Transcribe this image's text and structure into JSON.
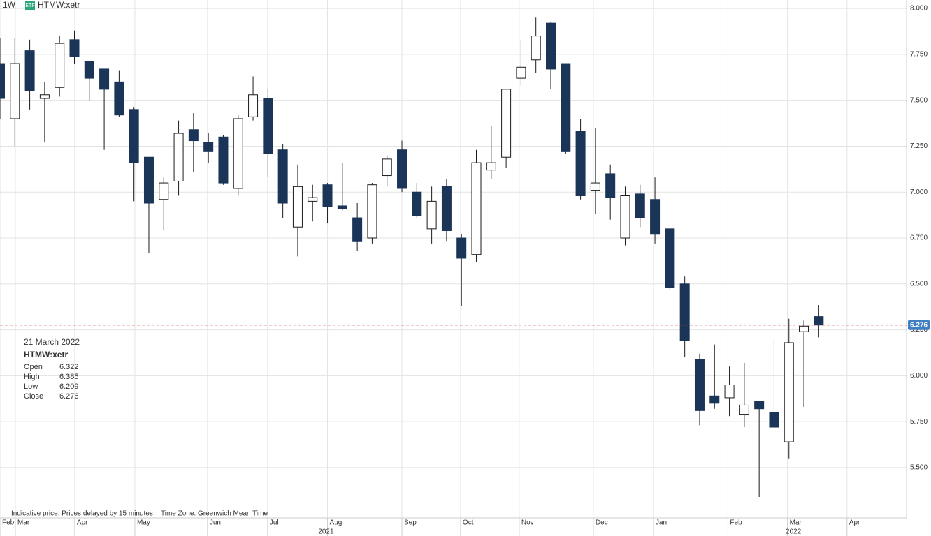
{
  "header": {
    "interval": "1W",
    "badge": "ETF",
    "symbol": "HTMW:xetr"
  },
  "info": {
    "date": "21 March 2022",
    "symbol": "HTMW:xetr",
    "rows": [
      {
        "label": "Open",
        "value": 6.322
      },
      {
        "label": "High",
        "value": 6.385
      },
      {
        "label": "Low",
        "value": 6.209
      },
      {
        "label": "Close",
        "value": 6.276
      }
    ]
  },
  "footer": {
    "note": "Indicative price. Prices delayed by 15 minutes",
    "timezone": "Time Zone: Greenwich Mean Time"
  },
  "chart_data": {
    "type": "candlestick",
    "x": [
      0,
      1,
      2,
      3,
      4,
      5,
      6,
      7,
      8,
      9,
      10,
      11,
      12,
      13,
      14,
      15,
      16,
      17,
      18,
      19,
      20,
      21,
      22,
      23,
      24,
      25,
      26,
      27,
      28,
      29,
      30,
      31,
      32,
      33,
      34,
      35,
      36,
      37,
      38,
      39,
      40,
      41,
      42,
      43,
      44,
      45,
      46,
      47,
      48,
      49,
      50,
      51,
      52,
      53,
      54,
      55
    ],
    "open": [
      7.7,
      7.4,
      7.77,
      7.51,
      7.57,
      7.83,
      7.71,
      7.67,
      7.6,
      7.45,
      7.19,
      6.96,
      7.06,
      7.34,
      7.27,
      7.3,
      7.02,
      7.41,
      7.51,
      7.23,
      6.81,
      6.95,
      7.04,
      6.925,
      6.86,
      6.75,
      7.09,
      7.23,
      7.0,
      6.8,
      7.03,
      6.75,
      6.66,
      7.12,
      7.19,
      7.62,
      7.72,
      7.92,
      7.7,
      7.33,
      7.01,
      7.1,
      6.75,
      6.99,
      6.96,
      6.8,
      6.5,
      6.09,
      5.89,
      5.88,
      5.79,
      5.86,
      5.8,
      5.64,
      6.24,
      6.322
    ],
    "high": [
      7.84,
      7.84,
      7.83,
      7.6,
      7.85,
      7.88,
      7.71,
      7.67,
      7.66,
      7.46,
      7.19,
      7.08,
      7.39,
      7.43,
      7.32,
      7.31,
      7.42,
      7.63,
      7.56,
      7.26,
      7.15,
      7.04,
      7.05,
      7.16,
      6.94,
      7.05,
      7.2,
      7.28,
      7.05,
      7.03,
      7.07,
      6.77,
      7.23,
      7.36,
      7.56,
      7.83,
      7.95,
      7.925,
      7.7,
      7.4,
      7.35,
      7.15,
      7.03,
      7.04,
      7.08,
      6.8,
      6.54,
      6.12,
      6.17,
      6.05,
      6.07,
      5.86,
      6.2,
      6.31,
      6.3,
      6.385
    ],
    "low": [
      7.4,
      7.25,
      7.45,
      7.27,
      7.52,
      7.7,
      7.5,
      7.23,
      7.41,
      6.95,
      6.67,
      6.79,
      6.98,
      7.11,
      7.16,
      7.04,
      6.98,
      7.39,
      7.08,
      6.86,
      6.65,
      6.84,
      6.83,
      6.9,
      6.68,
      6.72,
      7.03,
      7.0,
      6.86,
      6.72,
      6.73,
      6.38,
      6.62,
      7.07,
      7.13,
      7.58,
      7.65,
      7.56,
      7.21,
      6.96,
      6.88,
      6.85,
      6.71,
      6.81,
      6.72,
      6.47,
      6.1,
      5.73,
      5.82,
      5.78,
      5.72,
      5.34,
      5.72,
      5.55,
      5.83,
      6.209
    ],
    "close": [
      7.51,
      7.7,
      7.55,
      7.53,
      7.81,
      7.74,
      7.62,
      7.56,
      7.42,
      7.16,
      6.94,
      7.05,
      7.32,
      7.28,
      7.22,
      7.05,
      7.4,
      7.53,
      7.21,
      6.94,
      7.03,
      6.97,
      6.92,
      6.91,
      6.73,
      7.04,
      7.18,
      7.02,
      6.87,
      6.95,
      6.79,
      6.64,
      7.16,
      7.16,
      7.56,
      7.68,
      7.85,
      7.67,
      7.22,
      6.98,
      7.05,
      6.97,
      6.98,
      6.86,
      6.77,
      6.48,
      6.19,
      5.81,
      5.85,
      5.95,
      5.84,
      5.82,
      5.72,
      6.18,
      6.27,
      6.276
    ],
    "up_color": "#ffffff",
    "down_color": "#1b3558",
    "xlim": [
      0,
      60.9
    ],
    "xticks": [
      {
        "value": 0,
        "label": "Feb"
      },
      {
        "value": 1.03,
        "label": "Mar"
      },
      {
        "value": 5.02,
        "label": "Apr"
      },
      {
        "value": 9.06,
        "label": "May"
      },
      {
        "value": 13.94,
        "label": "Jun"
      },
      {
        "value": 17.98,
        "label": "Jul"
      },
      {
        "value": 22.0,
        "label": "Aug"
      },
      {
        "value": 27.0,
        "label": "Sep"
      },
      {
        "value": 30.94,
        "label": "Oct"
      },
      {
        "value": 34.88,
        "label": "Nov"
      },
      {
        "value": 39.86,
        "label": "Dec"
      },
      {
        "value": 43.9,
        "label": "Jan"
      },
      {
        "value": 48.9,
        "label": "Feb"
      },
      {
        "value": 52.9,
        "label": "Mar"
      },
      {
        "value": 56.9,
        "label": "Apr"
      }
    ],
    "year_labels": [
      {
        "value": 21.9,
        "label": "2021"
      },
      {
        "value": 53.3,
        "label": "2022"
      }
    ],
    "ylim": [
      5.226,
      8.046
    ],
    "yticks": [
      {
        "value": 5.5,
        "label": "5.500"
      },
      {
        "value": 5.75,
        "label": "5.750"
      },
      {
        "value": 6,
        "label": "6.000"
      },
      {
        "value": 6.25,
        "label": "6.250"
      },
      {
        "value": 6.5,
        "label": "6.500"
      },
      {
        "value": 6.75,
        "label": "6.750"
      },
      {
        "value": 7,
        "label": "7.000"
      },
      {
        "value": 7.25,
        "label": "7.250"
      },
      {
        "value": 7.5,
        "label": "7.500"
      },
      {
        "value": 7.75,
        "label": "7.750"
      },
      {
        "value": 8,
        "label": "8.000"
      }
    ],
    "grid": true
  }
}
